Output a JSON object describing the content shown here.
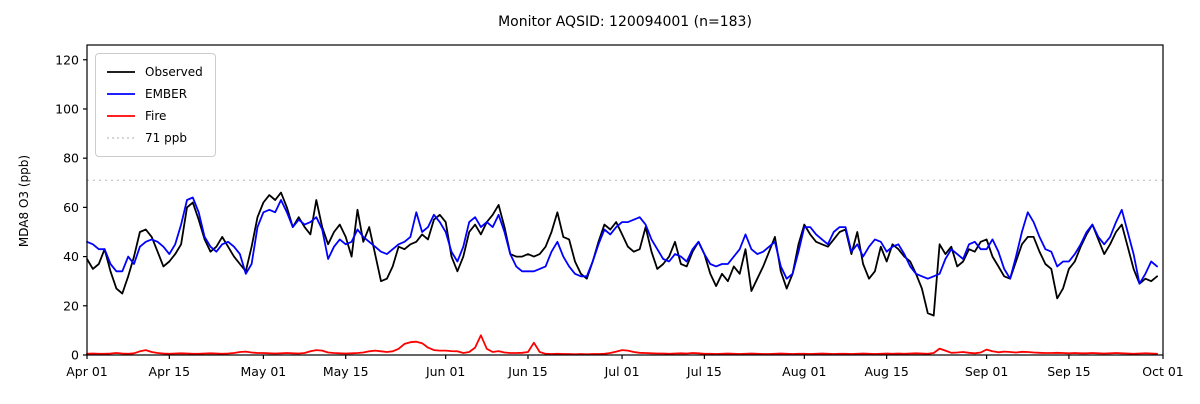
{
  "title": "Monitor AQSID: 120094001 (n=183)",
  "ylabel": "MDA8 O3 (ppb)",
  "colors": {
    "observed": "#000000",
    "ember": "#0000ff",
    "fire": "#ff0000",
    "threshold": "#c9c9c9",
    "axis": "#000000",
    "legend_border": "#cccccc"
  },
  "chart_data": {
    "type": "line",
    "title": "Monitor AQSID: 120094001 (n=183)",
    "xlabel": "",
    "ylabel": "MDA8 O3 (ppb)",
    "ylim": [
      0,
      126
    ],
    "y_ticks": [
      0,
      20,
      40,
      60,
      80,
      100,
      120
    ],
    "x_tick_labels": [
      "Apr 01",
      "Apr 15",
      "May 01",
      "May 15",
      "Jun 01",
      "Jun 15",
      "Jul 01",
      "Jul 15",
      "Aug 01",
      "Aug 15",
      "Sep 01",
      "Sep 15",
      "Oct 01"
    ],
    "x_tick_days": [
      0,
      14,
      30,
      44,
      61,
      75,
      91,
      105,
      122,
      136,
      153,
      167,
      183
    ],
    "n_days": 183,
    "start_date": "Apr 01",
    "end_date": "Sep 30",
    "grid": false,
    "legend_position": "upper left",
    "threshold": {
      "label": "71 ppb",
      "value": 71,
      "style": "dotted",
      "color": "#c9c9c9"
    },
    "series": [
      {
        "name": "Observed",
        "color": "#000000",
        "style": "solid",
        "values": [
          39,
          35,
          37,
          43,
          34,
          27,
          25,
          32,
          40,
          50,
          51,
          48,
          42,
          36,
          38,
          41,
          45,
          60,
          62,
          55,
          47,
          42,
          44,
          48,
          44,
          40,
          37,
          34,
          44,
          56,
          62,
          65,
          63,
          66,
          60,
          52,
          56,
          52,
          49,
          63,
          52,
          45,
          50,
          53,
          48,
          40,
          59,
          46,
          52,
          41,
          30,
          31,
          36,
          44,
          43,
          45,
          46,
          49,
          47,
          55,
          57,
          54,
          40,
          34,
          40,
          50,
          53,
          49,
          54,
          57,
          61,
          52,
          41,
          40,
          40,
          41,
          40,
          41,
          44,
          50,
          58,
          48,
          47,
          38,
          33,
          31,
          38,
          46,
          53,
          51,
          54,
          49,
          44,
          42,
          43,
          52,
          42,
          35,
          37,
          40,
          46,
          37,
          36,
          42,
          46,
          41,
          33,
          28,
          33,
          30,
          36,
          33,
          43,
          26,
          31,
          36,
          42,
          48,
          34,
          27,
          33,
          45,
          53,
          49,
          46,
          45,
          44,
          47,
          50,
          51,
          41,
          50,
          37,
          31,
          34,
          44,
          38,
          45,
          43,
          40,
          38,
          33,
          27,
          17,
          16,
          45,
          41,
          44,
          36,
          38,
          43,
          42,
          46,
          47,
          40,
          36,
          32,
          31,
          38,
          45,
          48,
          48,
          42,
          37,
          35,
          23,
          27,
          35,
          38,
          44,
          49,
          53,
          47,
          41,
          45,
          50,
          53,
          44,
          35,
          29,
          31,
          30,
          32
        ]
      },
      {
        "name": "EMBER",
        "color": "#0000ff",
        "style": "solid",
        "values": [
          46,
          45,
          43,
          43,
          37,
          34,
          34,
          40,
          37,
          44,
          46,
          47,
          46,
          44,
          41,
          45,
          53,
          63,
          64,
          58,
          48,
          44,
          42,
          45,
          46,
          44,
          41,
          33,
          37,
          52,
          58,
          59,
          58,
          63,
          58,
          52,
          55,
          53,
          54,
          56,
          51,
          39,
          44,
          47,
          45,
          46,
          51,
          48,
          46,
          44,
          42,
          41,
          43,
          45,
          46,
          48,
          58,
          50,
          52,
          57,
          54,
          50,
          42,
          38,
          44,
          54,
          56,
          52,
          54,
          52,
          57,
          50,
          41,
          36,
          34,
          34,
          34,
          35,
          36,
          42,
          46,
          40,
          36,
          33,
          32,
          32,
          38,
          45,
          51,
          49,
          52,
          54,
          54,
          55,
          56,
          53,
          47,
          43,
          39,
          38,
          41,
          40,
          38,
          43,
          46,
          41,
          37,
          36,
          37,
          37,
          40,
          43,
          49,
          43,
          41,
          42,
          44,
          46,
          36,
          31,
          33,
          42,
          52,
          52,
          49,
          47,
          45,
          50,
          52,
          52,
          42,
          45,
          40,
          44,
          47,
          46,
          42,
          44,
          45,
          41,
          36,
          33,
          32,
          31,
          32,
          33,
          39,
          43,
          41,
          39,
          45,
          46,
          43,
          43,
          47,
          42,
          35,
          31,
          40,
          50,
          58,
          54,
          48,
          43,
          42,
          36,
          38,
          38,
          41,
          45,
          50,
          53,
          48,
          45,
          48,
          54,
          59,
          50,
          41,
          29,
          33,
          38,
          36
        ]
      },
      {
        "name": "Fire",
        "color": "#ff0000",
        "style": "solid",
        "values": [
          0.5,
          0.6,
          0.5,
          0.5,
          0.6,
          0.8,
          0.6,
          0.5,
          0.7,
          1.5,
          2.0,
          1.2,
          0.8,
          0.6,
          0.5,
          0.6,
          0.7,
          0.6,
          0.5,
          0.5,
          0.6,
          0.7,
          0.6,
          0.5,
          0.6,
          0.8,
          1.2,
          1.4,
          1.0,
          0.8,
          0.8,
          0.7,
          0.6,
          0.7,
          0.8,
          0.7,
          0.6,
          0.8,
          1.5,
          2.0,
          1.8,
          1.0,
          0.8,
          0.7,
          0.6,
          0.7,
          0.8,
          1.0,
          1.5,
          1.8,
          1.5,
          1.2,
          1.5,
          2.5,
          4.5,
          5.2,
          5.4,
          4.8,
          3.0,
          2.0,
          1.8,
          1.8,
          1.6,
          1.5,
          0.8,
          1.2,
          3.0,
          8.0,
          2.5,
          1.2,
          1.6,
          1.0,
          0.8,
          0.8,
          0.9,
          1.2,
          5.0,
          1.2,
          0.5,
          0.4,
          0.5,
          0.4,
          0.4,
          0.3,
          0.4,
          0.3,
          0.4,
          0.4,
          0.5,
          0.8,
          1.4,
          2.0,
          1.8,
          1.2,
          0.9,
          0.8,
          0.7,
          0.6,
          0.6,
          0.5,
          0.6,
          0.7,
          0.6,
          0.8,
          0.7,
          0.5,
          0.5,
          0.4,
          0.5,
          0.6,
          0.5,
          0.4,
          0.5,
          0.6,
          0.5,
          0.4,
          0.4,
          0.5,
          0.6,
          0.5,
          0.4,
          0.5,
          0.5,
          0.4,
          0.5,
          0.6,
          0.5,
          0.4,
          0.5,
          0.5,
          0.4,
          0.5,
          0.6,
          0.5,
          0.4,
          0.5,
          0.6,
          0.5,
          0.6,
          0.5,
          0.6,
          0.7,
          0.6,
          0.5,
          0.8,
          2.6,
          1.8,
          0.9,
          1.0,
          1.2,
          0.9,
          0.7,
          1.0,
          2.2,
          1.5,
          1.1,
          1.4,
          1.2,
          1.0,
          1.3,
          1.2,
          1.0,
          0.9,
          0.8,
          0.8,
          0.9,
          0.8,
          0.7,
          0.8,
          0.7,
          0.7,
          0.8,
          0.7,
          0.6,
          0.7,
          0.8,
          0.7,
          0.6,
          0.5,
          0.6,
          0.7,
          0.6,
          0.5
        ]
      }
    ],
    "legend_entries": [
      "Observed",
      "EMBER",
      "Fire",
      "71 ppb"
    ]
  }
}
